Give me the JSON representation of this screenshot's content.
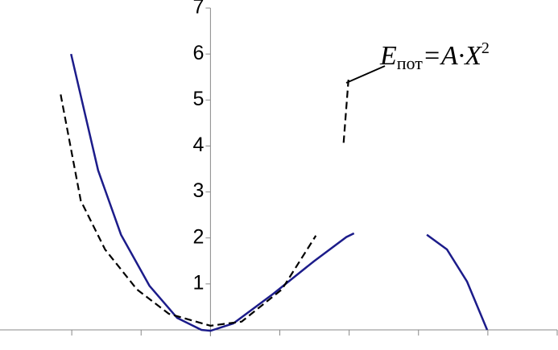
{
  "chart_data": {
    "type": "line",
    "xlim": [
      -3,
      5
    ],
    "xticks": [
      -2,
      -1,
      0,
      1,
      2,
      3,
      4,
      5
    ],
    "ylim": [
      0,
      7
    ],
    "yticks": [
      1,
      2,
      3,
      4,
      5,
      6,
      7
    ],
    "series": [
      {
        "color": "#1c1c8a",
        "dash": false,
        "x": [
          -2.01,
          -1.62,
          -1.29,
          -0.88,
          -0.48,
          -0.13,
          0,
          0.33,
          0.91,
          1.49,
          1.96,
          2.07,
          2.6,
          3.12,
          3.41,
          3.7,
          3.99
        ],
        "values": [
          6,
          3.47,
          2.07,
          0.96,
          0.26,
          0,
          -0.02,
          0.14,
          0.79,
          1.49,
          2.02,
          2.1,
          null,
          2.07,
          1.75,
          1.05,
          0
        ]
      },
      {
        "color": "#000000",
        "dash": true,
        "x": [
          -2.16,
          -1.87,
          -1.52,
          -1.06,
          -0.6,
          0,
          0.45,
          1.03,
          1.52,
          1.7,
          1.92,
          1.99
        ],
        "values": [
          5.12,
          2.81,
          1.75,
          0.88,
          0.35,
          0.09,
          0.18,
          0.88,
          2.05,
          null,
          4.07,
          5.44
        ]
      }
    ],
    "annotation": {
      "symbol": "E",
      "subscript": "пот",
      "rest": "=A·X",
      "superscript": "2"
    }
  }
}
